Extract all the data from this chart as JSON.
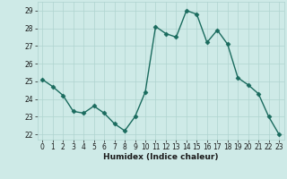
{
  "x": [
    0,
    1,
    2,
    3,
    4,
    5,
    6,
    7,
    8,
    9,
    10,
    11,
    12,
    13,
    14,
    15,
    16,
    17,
    18,
    19,
    20,
    21,
    22,
    23
  ],
  "y": [
    25.1,
    24.7,
    24.2,
    23.3,
    23.2,
    23.6,
    23.2,
    22.6,
    22.2,
    23.0,
    24.4,
    28.1,
    27.7,
    27.5,
    29.0,
    28.8,
    27.2,
    27.9,
    27.1,
    25.2,
    24.8,
    24.3,
    23.0,
    22.0
  ],
  "xlabel": "Humidex (Indice chaleur)",
  "ylim": [
    21.7,
    29.5
  ],
  "yticks": [
    22,
    23,
    24,
    25,
    26,
    27,
    28,
    29
  ],
  "xticks": [
    0,
    1,
    2,
    3,
    4,
    5,
    6,
    7,
    8,
    9,
    10,
    11,
    12,
    13,
    14,
    15,
    16,
    17,
    18,
    19,
    20,
    21,
    22,
    23
  ],
  "line_color": "#1a6b5e",
  "marker_color": "#1a6b5e",
  "bg_color": "#ceeae7",
  "grid_color": "#afd4d0",
  "axis_label_color": "#1a1a1a",
  "tick_label_color": "#1a1a1a",
  "marker": "D",
  "markersize": 2.5,
  "linewidth": 1.0
}
